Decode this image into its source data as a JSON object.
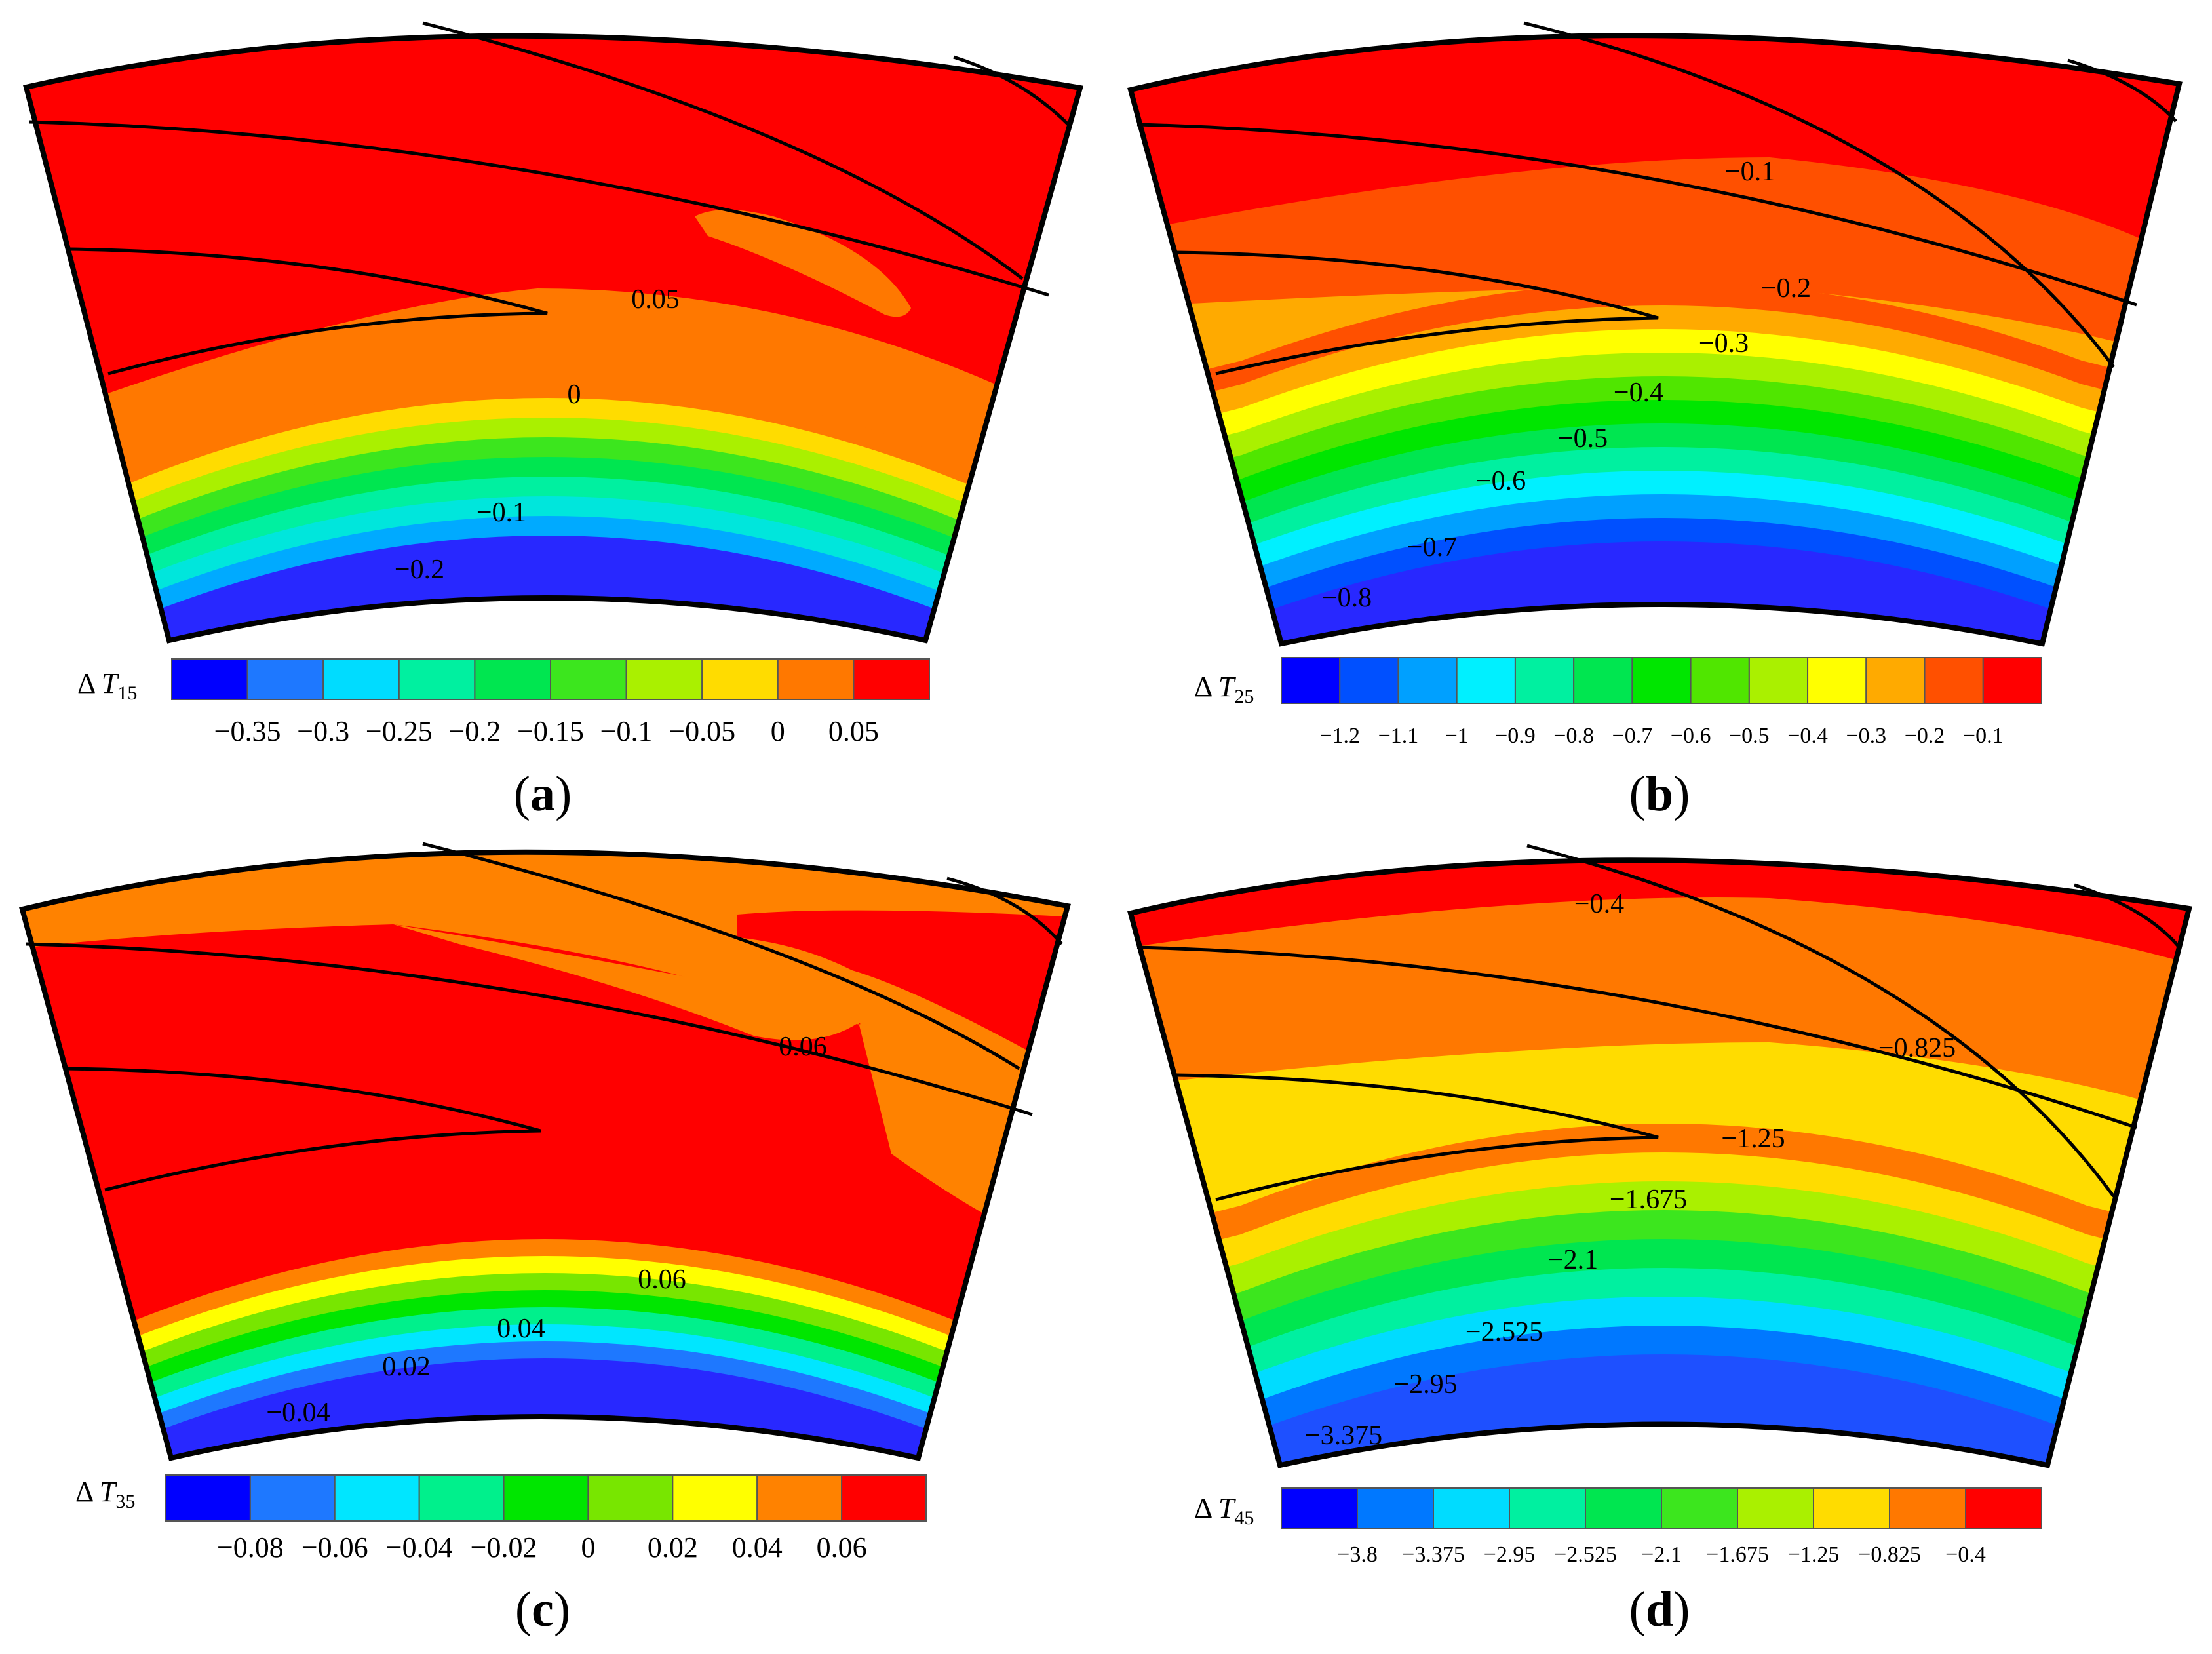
{
  "panels": [
    {
      "id": "a",
      "label": "a",
      "colorbar": {
        "symbol": "T",
        "subscript": "15",
        "ticks": [
          "−0.35",
          "−0.3",
          "−0.25",
          "−0.2",
          "−0.15",
          "−0.1",
          "−0.05",
          "0",
          "0.05"
        ],
        "colors": [
          "#0000ff",
          "#1e78ff",
          "#00dcff",
          "#00f0a0",
          "#00e650",
          "#3ce61e",
          "#aaf000",
          "#ffdc00",
          "#ff7800",
          "#ff0000"
        ]
      },
      "contours": {
        "bands": [
          "#2828ff",
          "#00aaff",
          "#00e6dc",
          "#00f0a0",
          "#00e650",
          "#3ce61e",
          "#aaf000",
          "#ffdc00",
          "#ff7800"
        ],
        "labels": [
          "0.05",
          "0",
          "−0.1",
          "−0.2"
        ]
      }
    },
    {
      "id": "b",
      "label": "b",
      "colorbar": {
        "symbol": "T",
        "subscript": "25",
        "ticks": [
          "−1.2",
          "−1.1",
          "−1",
          "−0.9",
          "−0.8",
          "−0.7",
          "−0.6",
          "−0.5",
          "−0.4",
          "−0.3",
          "−0.2",
          "−0.1"
        ],
        "colors": [
          "#0000ff",
          "#0050ff",
          "#00a0ff",
          "#00f0ff",
          "#00f0a0",
          "#00e650",
          "#00e600",
          "#50e600",
          "#aaf000",
          "#ffff00",
          "#ffaa00",
          "#ff5000",
          "#ff0000"
        ]
      },
      "contours": {
        "bands": [
          "#2828ff",
          "#0050ff",
          "#00a0ff",
          "#00f0ff",
          "#00f0a0",
          "#00e650",
          "#00e600",
          "#50e600",
          "#aaf000",
          "#ffff00",
          "#ffaa00",
          "#ff5000"
        ],
        "labels": [
          "−0.1",
          "−0.2",
          "−0.3",
          "−0.4",
          "−0.5",
          "−0.6",
          "−0.7",
          "−0.8"
        ]
      }
    },
    {
      "id": "c",
      "label": "c",
      "colorbar": {
        "symbol": "T",
        "subscript": "35",
        "ticks": [
          "−0.08",
          "−0.06",
          "−0.04",
          "−0.02",
          "0",
          "0.02",
          "0.04",
          "0.06"
        ],
        "colors": [
          "#0000ff",
          "#1e78ff",
          "#00e6ff",
          "#00f08c",
          "#00e600",
          "#78e600",
          "#ffff00",
          "#ff8200",
          "#ff0000"
        ]
      },
      "contours": {
        "bands": [
          "#2828ff",
          "#1e78ff",
          "#00e6ff",
          "#00f08c",
          "#00e600",
          "#78e600",
          "#ffff00",
          "#ff8200"
        ],
        "labels": [
          "0.06",
          "0.06",
          "0.04",
          "0.02",
          "−0.04"
        ]
      }
    },
    {
      "id": "d",
      "label": "d",
      "colorbar": {
        "symbol": "T",
        "subscript": "45",
        "ticks": [
          "−3.8",
          "−3.375",
          "−2.95",
          "−2.525",
          "−2.1",
          "−1.675",
          "−1.25",
          "−0.825",
          "−0.4"
        ],
        "colors": [
          "#0000ff",
          "#0078ff",
          "#00dcff",
          "#00f0a0",
          "#00e650",
          "#3ce61e",
          "#aaf000",
          "#ffdc00",
          "#ff7800",
          "#ff0000"
        ]
      },
      "contours": {
        "bands": [
          "#1e50ff",
          "#0078ff",
          "#00dcff",
          "#00f0a0",
          "#00e650",
          "#3ce61e",
          "#aaf000",
          "#ffdc00",
          "#ff7800"
        ],
        "labels": [
          "−0.4",
          "−0.825",
          "−1.25",
          "−1.675",
          "−2.1",
          "−2.525",
          "−2.95",
          "−3.375"
        ]
      }
    }
  ]
}
